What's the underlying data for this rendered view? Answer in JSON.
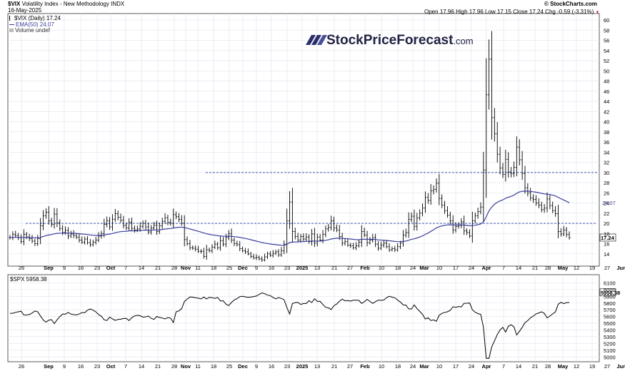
{
  "header": {
    "ticker": "$VIX",
    "name": "Volatility Index - New Methodology",
    "exchange": "INDX",
    "date": "16-May-2025",
    "brand": "© StockCharts.com",
    "quote": {
      "open_label": "Open",
      "open": "17.96",
      "high_label": "High",
      "high": "17.96",
      "low_label": "Low",
      "low": "17.15",
      "close_label": "Close",
      "close": "17.24",
      "chg_label": "Chg",
      "chg": "-0.59 (-3.31%)",
      "chg_arrow": "▼"
    }
  },
  "legend": {
    "series": "$VIX (Daily) 17.24",
    "ema": "EMA(50) 24.07",
    "volume": "Volume undef"
  },
  "watermark": {
    "main": "StockPriceForecast",
    "suffix": ".com"
  },
  "chart_data": [
    {
      "type": "ohlc",
      "title": "$VIX (Daily) 17.24",
      "ylabel": "",
      "ylim": [
        12,
        61
      ],
      "y_ticks": [
        "14",
        "16",
        "18",
        "20",
        "22",
        "24",
        "26",
        "28",
        "30",
        "32",
        "34",
        "36",
        "38",
        "40",
        "42",
        "44",
        "46",
        "48",
        "50",
        "52",
        "54",
        "56",
        "58",
        "60"
      ],
      "horizontal_lines": [
        20,
        30
      ],
      "last_value_label": "17.24",
      "ema_label": "24.07",
      "series_close": [
        17.2,
        17.8,
        17.6,
        17.2,
        16.4,
        17.8,
        17.3,
        17.0,
        16.5,
        16.0,
        17.0,
        19.5,
        21.5,
        22.2,
        20.5,
        19.8,
        21.8,
        20.1,
        19.0,
        18.2,
        18.6,
        17.5,
        17.9,
        17.6,
        17.3,
        16.7,
        16.3,
        16.9,
        16.2,
        15.8,
        16.3,
        16.7,
        17.5,
        18.0,
        19.8,
        20.5,
        19.3,
        20.8,
        21.9,
        21.2,
        20.6,
        19.6,
        19.1,
        20.2,
        19.0,
        18.7,
        18.9,
        19.4,
        20.0,
        19.3,
        18.3,
        19.1,
        19.6,
        18.4,
        19.5,
        20.4,
        21.1,
        20.2,
        20.0,
        21.7,
        21.3,
        20.8,
        20.0,
        16.8,
        16.0,
        15.2,
        15.1,
        14.9,
        14.5,
        14.5,
        13.5,
        14.8,
        14.6,
        15.3,
        15.9,
        15.2,
        16.6,
        15.9,
        17.2,
        18.0,
        16.7,
        16.0,
        15.8,
        15.0,
        14.6,
        14.4,
        14.0,
        13.5,
        13.2,
        13.3,
        13.0,
        12.8,
        13.4,
        14.0,
        13.7,
        14.1,
        14.4,
        13.8,
        14.6,
        15.9,
        20.5,
        24.2,
        18.4,
        17.4,
        16.7,
        17.4,
        16.9,
        17.3,
        16.4,
        17.9,
        16.1,
        17.3,
        16.7,
        17.8,
        18.9,
        19.2,
        20.5,
        19.1,
        18.7,
        17.4,
        16.1,
        16.4,
        15.7,
        15.6,
        15.2,
        15.6,
        16.3,
        18.4,
        17.7,
        16.2,
        16.7,
        17.2,
        15.9,
        15.1,
        15.7,
        16.1,
        15.4,
        14.8,
        15.0,
        14.8,
        15.4,
        16.1,
        17.7,
        18.2,
        20.8,
        21.4,
        19.4,
        21.1,
        22.0,
        23.0,
        25.1,
        24.5,
        26.4,
        26.7,
        27.9,
        24.9,
        23.6,
        22.5,
        21.6,
        20.5,
        18.7,
        19.4,
        19.6,
        20.3,
        18.5,
        18.2,
        17.5,
        20.5,
        21.5,
        22.3,
        23.2,
        30.5,
        45.3,
        52.3,
        40.8,
        37.6,
        33.6,
        30.9,
        29.6,
        32.6,
        30.1,
        29.8,
        31.0,
        35.0,
        32.5,
        29.8,
        27.0,
        26.0,
        25.0,
        24.7,
        24.0,
        23.6,
        22.7,
        23.0,
        24.8,
        23.5,
        22.5,
        21.9,
        18.4,
        17.9,
        18.7,
        17.8,
        17.2
      ]
    },
    {
      "type": "line",
      "title": "$SPX 5958.38",
      "ylim": [
        4950,
        6200
      ],
      "y_ticks": [
        "5000",
        "5100",
        "5200",
        "5300",
        "5400",
        "5500",
        "5600",
        "5700",
        "5800",
        "5900",
        "6000",
        "6100"
      ],
      "last_value_label": "5958.38",
      "x_tick_labels": [
        "26",
        "Sep",
        "9",
        "16",
        "23",
        "Oct",
        "7",
        "14",
        "21",
        "28",
        "Nov",
        "11",
        "18",
        "25",
        "Dec",
        "9",
        "16",
        "23",
        "2025",
        "13",
        "21",
        "27",
        "Feb",
        "10",
        "18",
        "24",
        "Mar",
        "10",
        "17",
        "24",
        "Apr",
        "7",
        "14",
        "21",
        "28",
        "May",
        "12",
        "19",
        "27",
        "Jun"
      ],
      "x_tick_bold": [
        "Sep",
        "Oct",
        "Nov",
        "Dec",
        "2025",
        "Feb",
        "Mar",
        "Apr",
        "May",
        "Jun"
      ]
    }
  ],
  "colors": {
    "ema": "#3b3f9c",
    "hline": "#2a3ea0",
    "price": "#000000",
    "grid": "#dde3ee",
    "watermark": "#222244"
  }
}
